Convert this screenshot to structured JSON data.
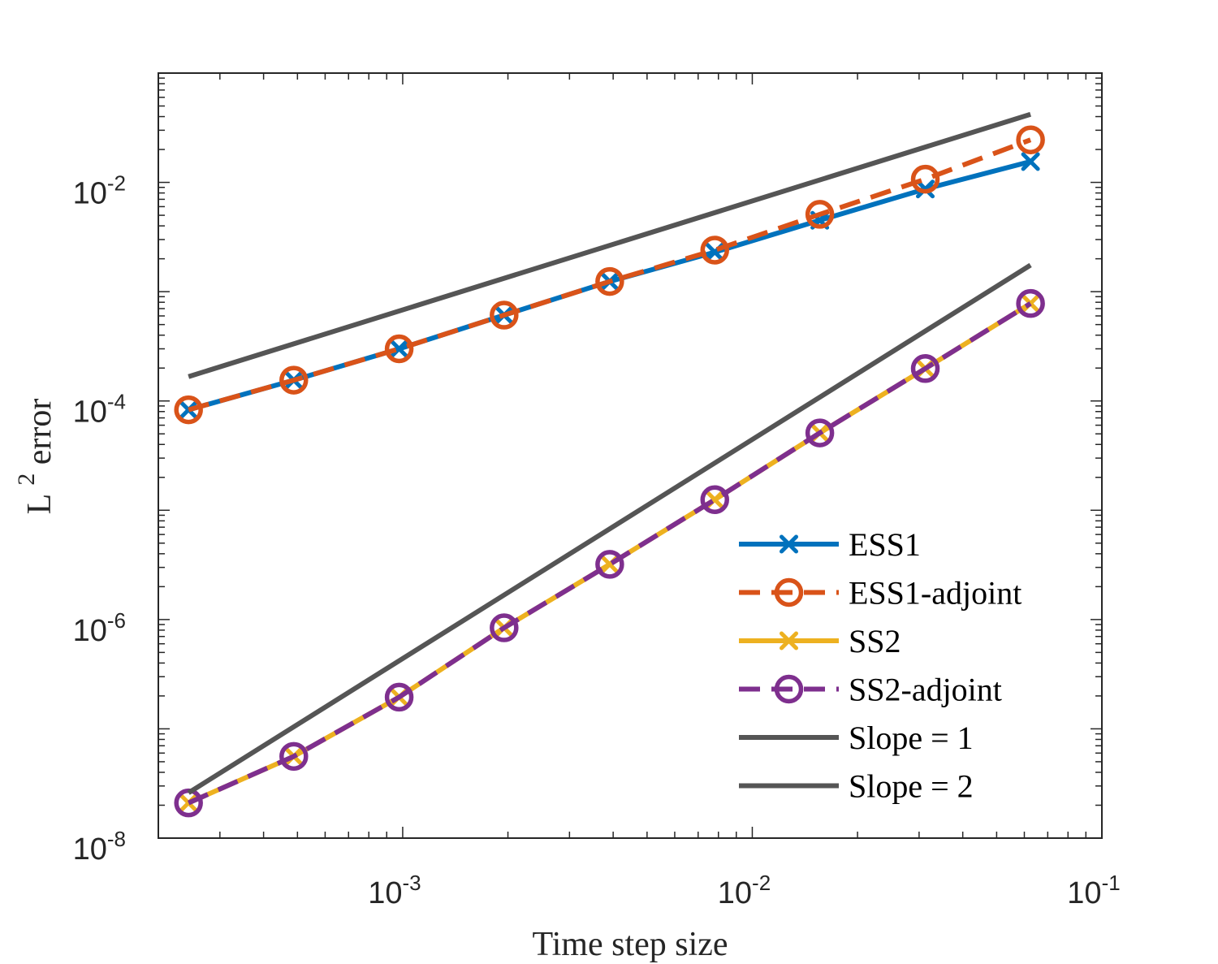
{
  "chart_data": {
    "type": "line",
    "scale": {
      "x": "log",
      "y": "log"
    },
    "xlabel": "Time step size",
    "ylabel": {
      "base": "L",
      "superscript": "2",
      "rest": " error"
    },
    "xlim": [
      0.0002,
      0.1
    ],
    "ylim": [
      1e-08,
      0.1
    ],
    "xticks": [
      {
        "value": 0.001,
        "base": "10",
        "exp": "-3"
      },
      {
        "value": 0.01,
        "base": "10",
        "exp": "-2"
      },
      {
        "value": 0.1,
        "base": "10",
        "exp": "-1"
      }
    ],
    "yticks": [
      {
        "value": 1e-08,
        "base": "10",
        "exp": "-8"
      },
      {
        "value": 1e-06,
        "base": "10",
        "exp": "-6"
      },
      {
        "value": 0.0001,
        "base": "10",
        "exp": "-4"
      },
      {
        "value": 0.01,
        "base": "10",
        "exp": "-2"
      }
    ],
    "grid": false,
    "legend_position": "bottom-right",
    "series": [
      {
        "name": "ESS1",
        "color": "#0072BD",
        "dash": "solid",
        "marker": "x",
        "x": [
          0.000244,
          0.000488,
          0.000977,
          0.00195,
          0.00391,
          0.00781,
          0.0156,
          0.03125,
          0.0625
        ],
        "y": [
          8.3e-05,
          0.000155,
          0.0003,
          0.00061,
          0.00124,
          0.0023,
          0.0045,
          0.0087,
          0.0155
        ]
      },
      {
        "name": "ESS1-adjoint",
        "color": "#D95319",
        "dash": "dashed",
        "marker": "o",
        "x": [
          0.000244,
          0.000488,
          0.000977,
          0.00195,
          0.00391,
          0.00781,
          0.0156,
          0.03125,
          0.0625
        ],
        "y": [
          8.3e-05,
          0.000155,
          0.0003,
          0.00061,
          0.00124,
          0.0024,
          0.0051,
          0.0107,
          0.0245
        ]
      },
      {
        "name": "SS2",
        "color": "#EDB120",
        "dash": "solid",
        "marker": "x",
        "x": [
          0.000244,
          0.000488,
          0.000977,
          0.00195,
          0.00391,
          0.00781,
          0.0156,
          0.03125,
          0.0625
        ],
        "y": [
          2.1e-08,
          5.6e-08,
          1.95e-07,
          8.4e-07,
          3.2e-06,
          1.25e-05,
          5.1e-05,
          0.000198,
          0.00078
        ]
      },
      {
        "name": "SS2-adjoint",
        "color": "#7E2F8E",
        "dash": "dashed",
        "marker": "o",
        "x": [
          0.000244,
          0.000488,
          0.000977,
          0.00195,
          0.00391,
          0.00781,
          0.0156,
          0.03125,
          0.0625
        ],
        "y": [
          2.1e-08,
          5.6e-08,
          1.95e-07,
          8.4e-07,
          3.2e-06,
          1.25e-05,
          5.1e-05,
          0.000198,
          0.00078
        ]
      },
      {
        "name": "Slope = 1",
        "color": "#555555",
        "dash": "solid",
        "marker": "none",
        "x": [
          0.000244,
          0.0625
        ],
        "y": [
          0.000167,
          0.042
        ]
      },
      {
        "name": "Slope = 2",
        "color": "#555555",
        "dash": "solid",
        "marker": "none",
        "x": [
          0.000244,
          0.0625
        ],
        "y": [
          2.6e-08,
          0.00175
        ]
      }
    ]
  }
}
